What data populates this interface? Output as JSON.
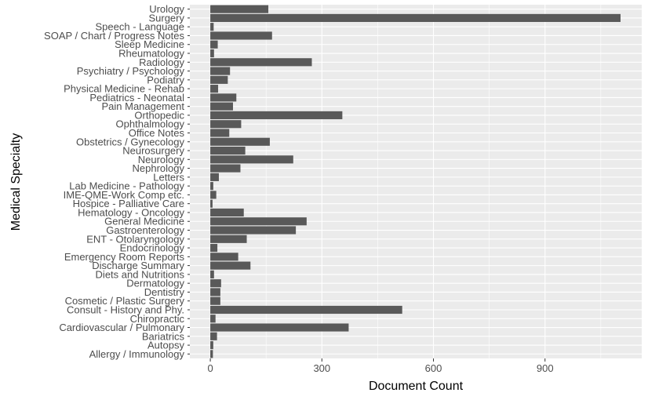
{
  "chart_data": {
    "type": "bar",
    "orientation": "horizontal",
    "xlabel": "Document Count",
    "ylabel": "Medical Specialty",
    "xlim": [
      -55,
      1160
    ],
    "xticks": [
      0,
      300,
      600,
      900
    ],
    "grid": true,
    "colors": {
      "panel": "#ebebeb",
      "grid": "#ffffff",
      "bar": "#595959"
    },
    "categories": [
      "Allergy / Immunology",
      "Autopsy",
      "Bariatrics",
      "Cardiovascular / Pulmonary",
      "Chiropractic",
      "Consult - History and Phy.",
      "Cosmetic / Plastic Surgery",
      "Dentistry",
      "Dermatology",
      "Diets and Nutritions",
      "Discharge Summary",
      "Emergency Room Reports",
      "Endocrinology",
      "ENT - Otolaryngology",
      "Gastroenterology",
      "General Medicine",
      "Hematology - Oncology",
      "Hospice - Palliative Care",
      "IME-QME-Work Comp etc.",
      "Lab Medicine - Pathology",
      "Letters",
      "Nephrology",
      "Neurology",
      "Neurosurgery",
      "Obstetrics / Gynecology",
      "Office Notes",
      "Ophthalmology",
      "Orthopedic",
      "Pain Management",
      "Pediatrics - Neonatal",
      "Physical Medicine - Rehab",
      "Podiatry",
      "Psychiatry / Psychology",
      "Radiology",
      "Rheumatology",
      "Sleep Medicine",
      "SOAP / Chart / Progress Notes",
      "Speech - Language",
      "Surgery",
      "Urology"
    ],
    "values": [
      7,
      8,
      18,
      372,
      14,
      516,
      27,
      27,
      29,
      10,
      108,
      75,
      19,
      98,
      230,
      259,
      90,
      6,
      16,
      8,
      23,
      81,
      223,
      94,
      160,
      51,
      83,
      355,
      61,
      70,
      21,
      47,
      53,
      273,
      10,
      20,
      166,
      9,
      1103,
      156
    ]
  }
}
